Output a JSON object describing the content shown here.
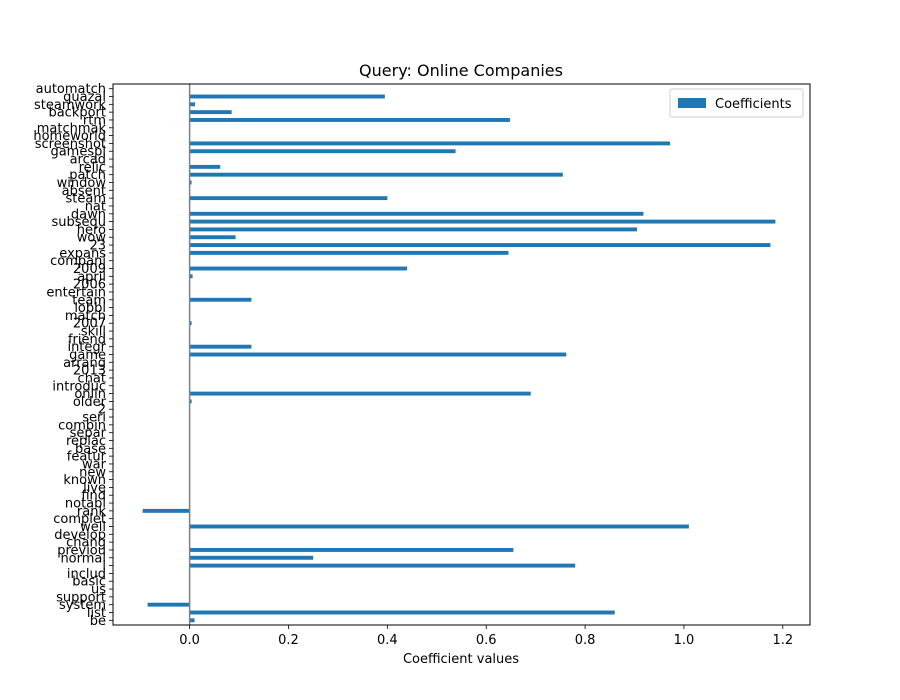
{
  "chart_data": {
    "type": "bar",
    "orientation": "horizontal",
    "title": "Query: Online Companies",
    "xlabel": "Coefficient values",
    "ylabel": "",
    "xlim": [
      -0.155,
      1.255
    ],
    "xticks": [
      "0.0",
      "0.2",
      "0.4",
      "0.6",
      "0.8",
      "1.0",
      "1.2"
    ],
    "xtick_values": [
      0.0,
      0.2,
      0.4,
      0.6,
      0.8,
      1.0,
      1.2
    ],
    "legend": {
      "position": "top-right",
      "entries": [
        "Coefficients"
      ]
    },
    "grid": false,
    "bar_color": "#1f77b4",
    "zero_line_color": "#808080",
    "series": [
      {
        "name": "Coefficients",
        "categories": [
          "be",
          "list",
          "system",
          "support",
          "us",
          "basic",
          "includ",
          "i",
          "normal",
          "previou",
          "chang",
          "develop",
          "well",
          "complet",
          "rank",
          "notabl",
          "find",
          "live",
          "known",
          "new",
          "war",
          "featur",
          "base",
          "replac",
          "separ",
          "combin",
          "seri",
          "2",
          "older",
          "onlin",
          "introduc",
          "chat",
          "2013",
          "arrang",
          "game",
          "integr",
          "friend",
          "skill",
          "2007",
          "match",
          "lobbi",
          "team",
          "entertain",
          "2006",
          "april",
          "2009",
          "compani",
          "expans",
          "23",
          "wow",
          "hero",
          "subsequ",
          "dawn",
          "nat",
          "steam",
          "absent",
          "window",
          "patch",
          "relic",
          "arcad",
          "gamespi",
          "screenshot",
          "homeworld",
          "matchmak",
          "rtm",
          "backport",
          "steamwork",
          "quazal",
          "automatch"
        ],
        "values": [
          0.01,
          0.86,
          -0.085,
          0.0,
          0.0,
          0.0,
          0.0,
          0.78,
          0.25,
          0.655,
          0.0,
          0.0,
          1.01,
          0.0,
          -0.095,
          0.0,
          0.0,
          0.0,
          0.0,
          0.0,
          0.0,
          0.0,
          0.0,
          0.0,
          0.0,
          0.0,
          0.0,
          0.0,
          0.004,
          0.69,
          0.0,
          0.0,
          0.0,
          0.0,
          0.762,
          0.125,
          0.0,
          0.0,
          0.004,
          0.0,
          0.0,
          0.125,
          0.0,
          0.0,
          0.006,
          0.44,
          0.0,
          0.645,
          1.175,
          0.093,
          0.905,
          1.185,
          0.918,
          0.0,
          0.4,
          0.0,
          0.004,
          0.755,
          0.062,
          0.0,
          0.538,
          0.972,
          0.0,
          0.0,
          0.648,
          0.085,
          0.011,
          0.395,
          0.0
        ]
      }
    ]
  }
}
